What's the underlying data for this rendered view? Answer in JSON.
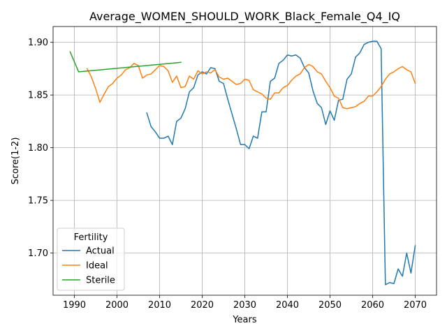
{
  "chart_data": {
    "type": "line",
    "title": "Average_WOMEN_SHOULD_WORK_Black_Female_Q4_IQ",
    "xlabel": "Years",
    "ylabel": "Score(1-2)",
    "xlim": [
      1985,
      2075
    ],
    "ylim": [
      1.66,
      1.915
    ],
    "x_ticks": [
      1990,
      2000,
      2010,
      2020,
      2030,
      2040,
      2050,
      2060,
      2070
    ],
    "y_ticks": [
      1.7,
      1.75,
      1.8,
      1.85,
      1.9
    ],
    "x_tick_labels": [
      "1990",
      "2000",
      "2010",
      "2020",
      "2030",
      "2040",
      "2050",
      "2060",
      "2070"
    ],
    "y_tick_labels": [
      "1.70",
      "1.75",
      "1.80",
      "1.85",
      "1.90"
    ],
    "grid": true,
    "legend": {
      "title": "Fertility",
      "placement": "lower-left"
    },
    "series": [
      {
        "name": "Actual",
        "color": "#1f77b4",
        "x": [
          2007,
          2008,
          2009,
          2010,
          2011,
          2012,
          2013,
          2014,
          2015,
          2016,
          2017,
          2018,
          2019,
          2020,
          2021,
          2022,
          2023,
          2024,
          2025,
          2026,
          2027,
          2028,
          2029,
          2030,
          2031,
          2032,
          2033,
          2034,
          2035,
          2036,
          2037,
          2038,
          2039,
          2040,
          2041,
          2042,
          2043,
          2044,
          2045,
          2046,
          2047,
          2048,
          2049,
          2050,
          2051,
          2052,
          2053,
          2054,
          2055,
          2056,
          2057,
          2058,
          2059,
          2060,
          2061,
          2062,
          2063,
          2064,
          2065,
          2066,
          2067,
          2068,
          2069,
          2070
        ],
        "values": [
          1.833,
          1.82,
          1.815,
          1.809,
          1.809,
          1.811,
          1.803,
          1.825,
          1.828,
          1.837,
          1.853,
          1.857,
          1.869,
          1.872,
          1.87,
          1.876,
          1.875,
          1.863,
          1.861,
          1.846,
          1.832,
          1.818,
          1.803,
          1.803,
          1.799,
          1.811,
          1.809,
          1.834,
          1.834,
          1.863,
          1.866,
          1.88,
          1.883,
          1.888,
          1.887,
          1.888,
          1.885,
          1.876,
          1.871,
          1.854,
          1.842,
          1.838,
          1.822,
          1.835,
          1.826,
          1.845,
          1.846,
          1.865,
          1.87,
          1.886,
          1.89,
          1.898,
          1.9,
          1.901,
          1.901,
          1.894,
          1.67,
          1.672,
          1.671,
          1.685,
          1.678,
          1.7,
          1.681,
          1.707
        ]
      },
      {
        "name": "Ideal",
        "color": "#ff7f0e",
        "x": [
          1993,
          1994,
          1995,
          1996,
          1997,
          1998,
          1999,
          2000,
          2001,
          2002,
          2003,
          2004,
          2005,
          2006,
          2007,
          2008,
          2009,
          2010,
          2011,
          2012,
          2013,
          2014,
          2015,
          2016,
          2017,
          2018,
          2019,
          2020,
          2021,
          2022,
          2023,
          2024,
          2025,
          2026,
          2027,
          2028,
          2029,
          2030,
          2031,
          2032,
          2033,
          2034,
          2035,
          2036,
          2037,
          2038,
          2039,
          2040,
          2041,
          2042,
          2043,
          2044,
          2045,
          2046,
          2047,
          2048,
          2049,
          2050,
          2051,
          2052,
          2053,
          2054,
          2055,
          2056,
          2057,
          2058,
          2059,
          2060,
          2061,
          2062,
          2063,
          2064,
          2065,
          2066,
          2067,
          2068,
          2069,
          2070
        ],
        "values": [
          1.875,
          1.867,
          1.856,
          1.843,
          1.851,
          1.858,
          1.861,
          1.866,
          1.869,
          1.874,
          1.876,
          1.88,
          1.878,
          1.866,
          1.869,
          1.87,
          1.874,
          1.878,
          1.877,
          1.873,
          1.862,
          1.868,
          1.857,
          1.858,
          1.868,
          1.865,
          1.873,
          1.87,
          1.872,
          1.871,
          1.874,
          1.867,
          1.865,
          1.866,
          1.863,
          1.86,
          1.861,
          1.865,
          1.864,
          1.855,
          1.853,
          1.851,
          1.847,
          1.846,
          1.852,
          1.852,
          1.857,
          1.859,
          1.864,
          1.868,
          1.87,
          1.876,
          1.879,
          1.877,
          1.872,
          1.87,
          1.863,
          1.857,
          1.849,
          1.847,
          1.838,
          1.837,
          1.838,
          1.839,
          1.842,
          1.844,
          1.849,
          1.849,
          1.853,
          1.858,
          1.865,
          1.87,
          1.872,
          1.875,
          1.877,
          1.874,
          1.872,
          1.861
        ]
      },
      {
        "name": "Sterile",
        "color": "#2ca02c",
        "x": [
          1989,
          1991,
          2015
        ],
        "values": [
          1.891,
          1.872,
          1.881
        ]
      }
    ]
  }
}
